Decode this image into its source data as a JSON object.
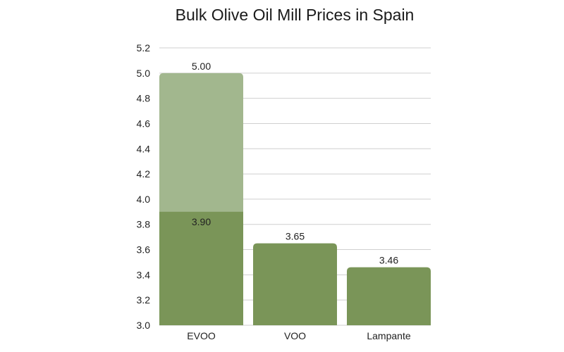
{
  "chart_data": {
    "type": "bar",
    "title": "Bulk Olive Oil Mill Prices in Spain",
    "xlabel": "",
    "ylabel": "",
    "ylim": [
      3.0,
      5.2
    ],
    "yticks": [
      3.0,
      3.2,
      3.4,
      3.6,
      3.8,
      4.0,
      4.2,
      4.4,
      4.6,
      4.8,
      5.0,
      5.2
    ],
    "grid": true,
    "categories": [
      "EVOO",
      "VOO",
      "Lampante"
    ],
    "values": [
      3.9,
      3.65,
      3.46
    ],
    "highlight": {
      "category": "EVOO",
      "value": 5.0
    },
    "value_labels": [
      "3.90",
      "3.65",
      "3.46"
    ],
    "highlight_label": "5.00",
    "colors": {
      "bar": "#7a9558",
      "highlight": "#a2b78e",
      "grid": "#cfcfcf"
    }
  }
}
